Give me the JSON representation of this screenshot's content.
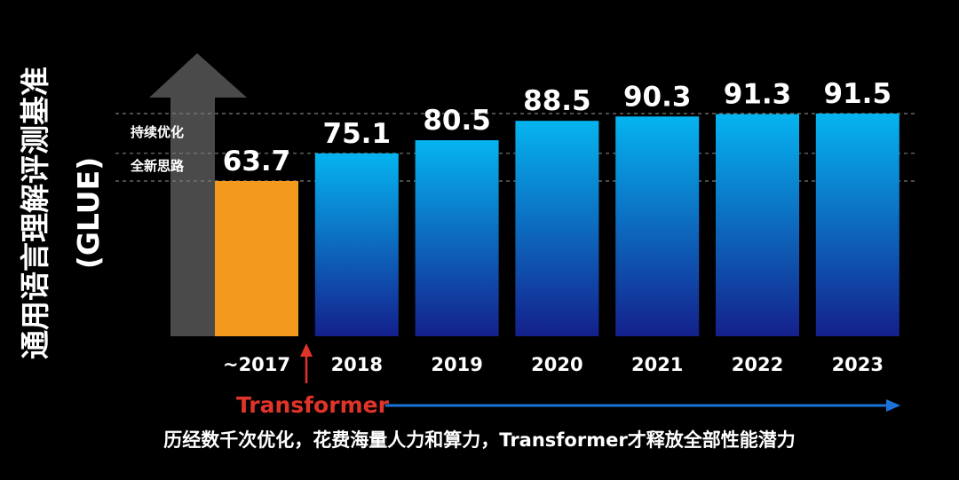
{
  "chart_data": {
    "type": "bar",
    "title": "",
    "ylabel": "通用语言理解评测基准",
    "ylabel_sub": "(GLUE)",
    "xlabel": "",
    "ylim": [
      0,
      100
    ],
    "categories": [
      "~2017",
      "2018",
      "2019",
      "2020",
      "2021",
      "2022",
      "2023"
    ],
    "values": [
      63.7,
      75.1,
      80.5,
      88.5,
      90.3,
      91.3,
      91.5
    ],
    "value_labels": [
      "63.7",
      "75.1",
      "80.5",
      "88.5",
      "90.3",
      "91.3",
      "91.5"
    ],
    "bar_colors": [
      "#f39a1e",
      "gradient",
      "gradient",
      "gradient",
      "gradient",
      "gradient",
      "gradient"
    ],
    "gradient_colors": {
      "top": "#06b4f0",
      "bottom": "#14208c"
    },
    "highlight_color": "#f39a1e",
    "reference_lines": [
      {
        "value": 91.5,
        "label": ""
      },
      {
        "value": 75.1,
        "label": "持续优化"
      },
      {
        "value": 63.7,
        "label": "全新思路"
      }
    ],
    "annotations": {
      "big_arrow_color": "#4a4a4a",
      "transformer_label": "Transformer",
      "transformer_color": "#e0342a",
      "timeline_color": "#1a73d9"
    },
    "caption": "历经数千次优化，花费海量人力和算力，Transformer才释放全部性能潜力",
    "grid": false,
    "legend": "none"
  }
}
